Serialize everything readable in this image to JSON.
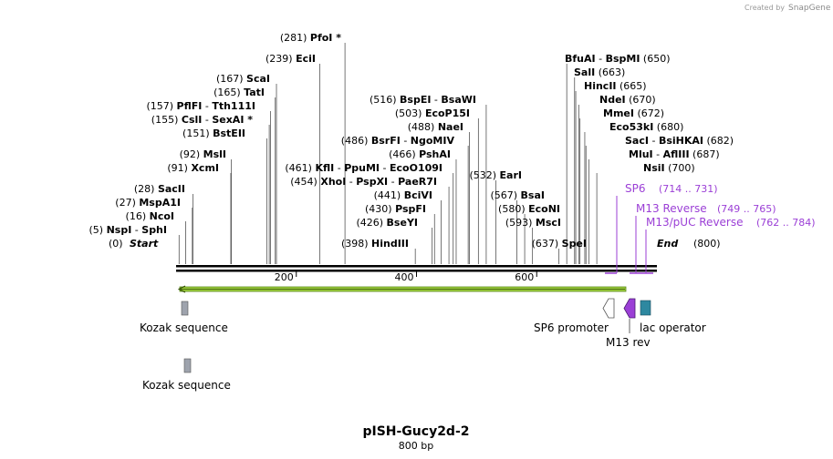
{
  "credit": {
    "prefix": "Created by",
    "brand": "SnapGene"
  },
  "map": {
    "title": "pISH-Gucy2d-2",
    "length_label": "800 bp",
    "total_bp": 800,
    "start_label": "Start",
    "start_pos": "(0)",
    "end_label": "End",
    "end_pos": "(800)",
    "ticks": [
      "200",
      "400",
      "600"
    ],
    "tick_values": [
      200,
      400,
      600
    ]
  },
  "sites": [
    {
      "pos_label": "(5)",
      "pos": 5,
      "names": [
        "NspI",
        "SphI"
      ]
    },
    {
      "pos_label": "(16)",
      "pos": 16,
      "names": [
        "NcoI"
      ]
    },
    {
      "pos_label": "(27)",
      "pos": 27,
      "names": [
        "MspA1I"
      ]
    },
    {
      "pos_label": "(28)",
      "pos": 28,
      "names": [
        "SacII"
      ]
    },
    {
      "pos_label": "(91)",
      "pos": 91,
      "names": [
        "XcmI"
      ]
    },
    {
      "pos_label": "(92)",
      "pos": 92,
      "names": [
        "MslI"
      ]
    },
    {
      "pos_label": "(151)",
      "pos": 151,
      "names": [
        "BstEII"
      ]
    },
    {
      "pos_label": "(155)",
      "pos": 155,
      "names": [
        "CslI",
        "SexAI *"
      ]
    },
    {
      "pos_label": "(157)",
      "pos": 157,
      "names": [
        "PflFI",
        "Tth111I"
      ]
    },
    {
      "pos_label": "(165)",
      "pos": 165,
      "names": [
        "TatI"
      ]
    },
    {
      "pos_label": "(167)",
      "pos": 167,
      "names": [
        "ScaI"
      ]
    },
    {
      "pos_label": "(239)",
      "pos": 239,
      "names": [
        "EciI"
      ]
    },
    {
      "pos_label": "(281)",
      "pos": 281,
      "names": [
        "PfoI *"
      ]
    },
    {
      "pos_label": "(454)",
      "pos": 454,
      "names": [
        "XhoI",
        "PspXI",
        "PaeR7I"
      ]
    },
    {
      "pos_label": "(461)",
      "pos": 461,
      "names": [
        "KflI",
        "PpuMI",
        "EcoO109I"
      ]
    },
    {
      "pos_label": "(398)",
      "pos": 398,
      "names": [
        "HindIII"
      ]
    },
    {
      "pos_label": "(426)",
      "pos": 426,
      "names": [
        "BseYI"
      ]
    },
    {
      "pos_label": "(430)",
      "pos": 430,
      "names": [
        "PspFI"
      ]
    },
    {
      "pos_label": "(441)",
      "pos": 441,
      "names": [
        "BciVI"
      ]
    },
    {
      "pos_label": "(466)",
      "pos": 466,
      "names": [
        "PshAI"
      ]
    },
    {
      "pos_label": "(486)",
      "pos": 486,
      "names": [
        "BsrFI",
        "NgoMIV"
      ]
    },
    {
      "pos_label": "(488)",
      "pos": 488,
      "names": [
        "NaeI"
      ]
    },
    {
      "pos_label": "(503)",
      "pos": 503,
      "names": [
        "EcoP15I"
      ]
    },
    {
      "pos_label": "(516)",
      "pos": 516,
      "names": [
        "BspEI",
        "BsaWI"
      ]
    },
    {
      "pos_label": "(532)",
      "pos": 532,
      "names": [
        "EarI"
      ]
    },
    {
      "pos_label": "(567)",
      "pos": 567,
      "names": [
        "BsaI"
      ]
    },
    {
      "pos_label": "(580)",
      "pos": 580,
      "names": [
        "EcoNI"
      ]
    },
    {
      "pos_label": "(593)",
      "pos": 593,
      "names": [
        "MscI"
      ]
    },
    {
      "pos_label": "(637)",
      "pos": 637,
      "names": [
        "SpeI"
      ]
    },
    {
      "pos_label": "(700)",
      "pos": 700,
      "names": [
        "NsiI"
      ]
    },
    {
      "pos_label": "(687)",
      "pos": 687,
      "names": [
        "MluI",
        "AflIII"
      ]
    },
    {
      "pos_label": "(682)",
      "pos": 682,
      "names": [
        "SacI",
        "BsiHKAI"
      ]
    },
    {
      "pos_label": "(680)",
      "pos": 680,
      "names": [
        "Eco53kI"
      ]
    },
    {
      "pos_label": "(672)",
      "pos": 672,
      "names": [
        "MmeI"
      ]
    },
    {
      "pos_label": "(670)",
      "pos": 670,
      "names": [
        "NdeI"
      ]
    },
    {
      "pos_label": "(665)",
      "pos": 665,
      "names": [
        "HincII"
      ]
    },
    {
      "pos_label": "(663)",
      "pos": 663,
      "names": [
        "SalI"
      ]
    },
    {
      "pos_label": "(650)",
      "pos": 650,
      "names": [
        "BfuAI",
        "BspMI"
      ]
    }
  ],
  "primers": [
    {
      "name": "SP6",
      "range": "(714 .. 731)",
      "color": "#9b3fd6"
    },
    {
      "name": "M13 Reverse",
      "range": "(749 .. 765)",
      "color": "#9b3fd6"
    },
    {
      "name": "M13/pUC Reverse",
      "range": "(762 .. 784)",
      "color": "#9b3fd6"
    }
  ],
  "features": [
    {
      "name": "Kozak sequence",
      "color": "#9ea3ad"
    },
    {
      "name": "Kozak sequence",
      "color": "#9ea3ad"
    },
    {
      "name": "SP6 promoter",
      "color": "#ffffff"
    },
    {
      "name": "M13 rev",
      "color": "#9b3fd6"
    },
    {
      "name": "lac operator",
      "color": "#2e88a0"
    }
  ],
  "colors": {
    "orf_arrow": "#9ccc3c",
    "primer": "#9b3fd6",
    "sequence": "#000000"
  }
}
